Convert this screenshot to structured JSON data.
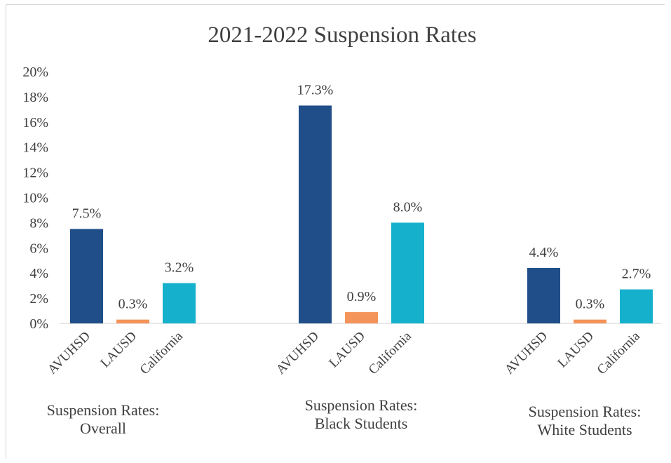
{
  "chart_data": {
    "type": "bar",
    "title": "2021-2022 Suspension Rates",
    "ylim": [
      0,
      20
    ],
    "y_ticks": [
      "0%",
      "2%",
      "4%",
      "6%",
      "8%",
      "10%",
      "12%",
      "14%",
      "16%",
      "18%",
      "20%"
    ],
    "grid": false,
    "groups": [
      {
        "label_lines": [
          "Suspension Rates:",
          "Overall"
        ],
        "bars": [
          {
            "category": "AVUHSD",
            "value": 7.5,
            "label": "7.5%",
            "color": "#1f4e89"
          },
          {
            "category": "LAUSD",
            "value": 0.3,
            "label": "0.3%",
            "color": "#f4945a"
          },
          {
            "category": "California",
            "value": 3.2,
            "label": "3.2%",
            "color": "#15b1cc"
          }
        ]
      },
      {
        "label_lines": [
          "Suspension Rates:",
          "Black Students"
        ],
        "bars": [
          {
            "category": "AVUHSD",
            "value": 17.3,
            "label": "17.3%",
            "color": "#1f4e89"
          },
          {
            "category": "LAUSD",
            "value": 0.9,
            "label": "0.9%",
            "color": "#f4945a"
          },
          {
            "category": "California",
            "value": 8.0,
            "label": "8.0%",
            "color": "#15b1cc"
          }
        ]
      },
      {
        "label_lines": [
          "Suspension Rates:",
          "White Students"
        ],
        "bars": [
          {
            "category": "AVUHSD",
            "value": 4.4,
            "label": "4.4%",
            "color": "#1f4e89"
          },
          {
            "category": "LAUSD",
            "value": 0.3,
            "label": "0.3%",
            "color": "#f4945a"
          },
          {
            "category": "California",
            "value": 2.7,
            "label": "2.7%",
            "color": "#15b1cc"
          }
        ]
      }
    ]
  }
}
